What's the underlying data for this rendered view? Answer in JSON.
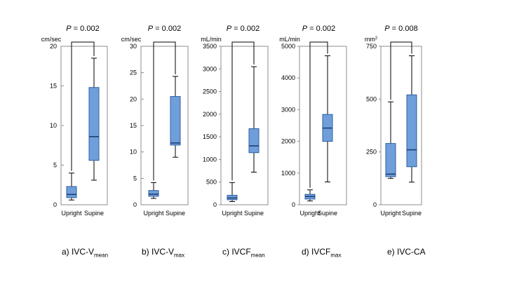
{
  "colors": {
    "box_fill": "#6f9fdb",
    "box_stroke": "#2f5f9f",
    "frame": "#8c8c8c",
    "whisker": "#000000"
  },
  "chart_data": [
    {
      "type": "box",
      "unit": "cm/sec",
      "pvalue": "P = 0.002",
      "ylim": [
        0,
        20
      ],
      "yticks": [
        "0",
        "5",
        "10",
        "15",
        "20"
      ],
      "categories": [
        "Upright",
        "Supine"
      ],
      "boxes": [
        {
          "category": "Upright",
          "min": 0.6,
          "q1": 0.9,
          "median": 1.3,
          "q3": 2.3,
          "max": 4.0
        },
        {
          "category": "Supine",
          "min": 3.1,
          "q1": 5.6,
          "median": 8.6,
          "q3": 14.8,
          "max": 18.5
        }
      ],
      "caption": {
        "prefix": "a) IVC-V",
        "sub": "mean",
        "suffix": ""
      }
    },
    {
      "type": "box",
      "unit": "cm/sec",
      "pvalue": "P = 0.002",
      "ylim": [
        0,
        30
      ],
      "yticks": [
        "0",
        "5",
        "10",
        "15",
        "20",
        "25",
        "30"
      ],
      "categories": [
        "Upright",
        "Supine"
      ],
      "boxes": [
        {
          "category": "Upright",
          "min": 1.2,
          "q1": 1.6,
          "median": 2.0,
          "q3": 2.7,
          "max": 4.2
        },
        {
          "category": "Supine",
          "min": 9.0,
          "q1": 11.3,
          "median": 11.7,
          "q3": 20.5,
          "max": 24.3
        }
      ],
      "caption": {
        "prefix": "b) IVC-V",
        "sub": "max",
        "suffix": ""
      }
    },
    {
      "type": "box",
      "unit": "mL/min",
      "pvalue": "P = 0.002",
      "ylim": [
        0,
        3500
      ],
      "yticks": [
        "0",
        "500",
        "1000",
        "1500",
        "2000",
        "2500",
        "3000",
        "3500"
      ],
      "categories": [
        "Upright",
        "Supine"
      ],
      "boxes": [
        {
          "category": "Upright",
          "min": 70,
          "q1": 110,
          "median": 150,
          "q3": 210,
          "max": 490
        },
        {
          "category": "Supine",
          "min": 720,
          "q1": 1150,
          "median": 1300,
          "q3": 1680,
          "max": 3050
        }
      ],
      "caption": {
        "prefix": "c) IVCF",
        "sub": "mean",
        "suffix": ""
      }
    },
    {
      "type": "box",
      "unit": "mL/min",
      "pvalue": "P = 0.002",
      "ylim": [
        0,
        5000
      ],
      "yticks": [
        "0",
        "1000",
        "2000",
        "3000",
        "4000",
        "5000"
      ],
      "categories": [
        "Upright",
        "Supine"
      ],
      "boxes": [
        {
          "category": "Upright",
          "min": 120,
          "q1": 180,
          "median": 260,
          "q3": 330,
          "max": 470
        },
        {
          "category": "Supine",
          "min": 720,
          "q1": 2000,
          "median": 2420,
          "q3": 2850,
          "max": 4700
        }
      ],
      "caption": {
        "prefix": "d) IVCF",
        "sub": "max",
        "suffix": ""
      }
    },
    {
      "type": "box",
      "unit": "mm",
      "unit_sup": "2",
      "pvalue": "P = 0.008",
      "ylim": [
        0,
        750
      ],
      "yticks": [
        "0",
        "250",
        "500",
        "750"
      ],
      "categories": [
        "Upright",
        "Supine"
      ],
      "boxes": [
        {
          "category": "Upright",
          "min": 125,
          "q1": 133,
          "median": 145,
          "q3": 290,
          "max": 487
        },
        {
          "category": "Supine",
          "min": 107,
          "q1": 180,
          "median": 260,
          "q3": 520,
          "max": 705
        }
      ],
      "caption": {
        "prefix": "e) IVC-CA",
        "sub": "",
        "suffix": ""
      }
    }
  ]
}
